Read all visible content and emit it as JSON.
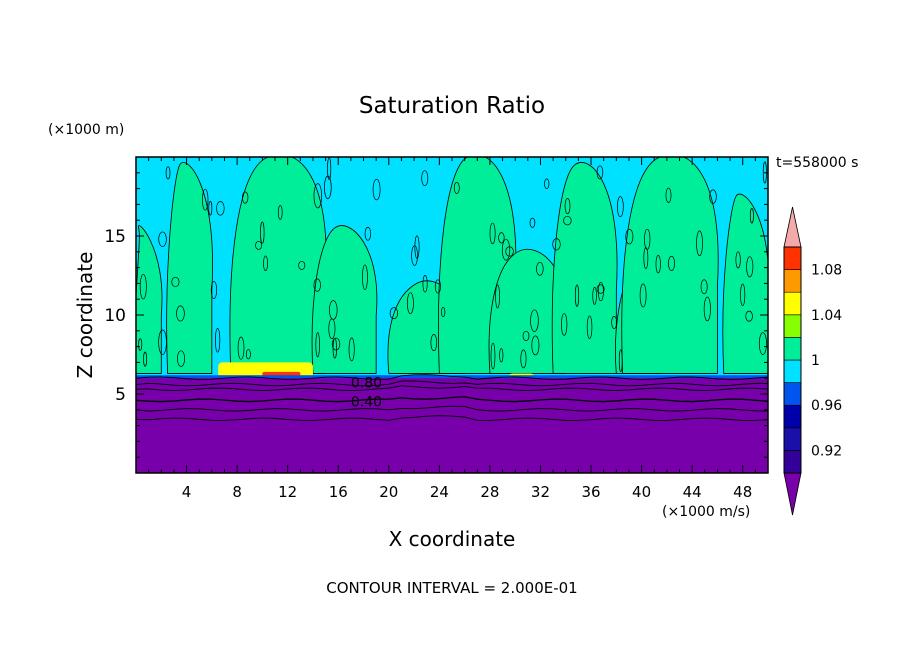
{
  "chart_data": {
    "type": "heatmap",
    "title": "Saturation Ratio",
    "xlabel": "X coordinate",
    "ylabel": "Z coordinate",
    "x_unit": "(×1000 m/s)",
    "y_unit": "(×1000 m)",
    "time_label": "t=558000 s",
    "contour_interval_label": "CONTOUR INTERVAL = 2.000E-01",
    "xlim": [
      0,
      50
    ],
    "ylim": [
      0,
      20
    ],
    "x_ticks": [
      4,
      8,
      12,
      16,
      20,
      24,
      28,
      32,
      36,
      40,
      44,
      48
    ],
    "y_ticks": [
      5,
      10,
      15
    ],
    "contour_labels": [
      {
        "text": "0.80",
        "x": 17.0,
        "y": 5.8
      },
      {
        "text": "0.40",
        "x": 17.0,
        "y": 4.6
      }
    ],
    "colorbar": {
      "levels": [
        0.9,
        0.92,
        0.94,
        0.96,
        0.98,
        1.0,
        1.02,
        1.04,
        1.06,
        1.08,
        1.1
      ],
      "colors": [
        "#330099",
        "#1a10a8",
        "#0000aa",
        "#0055ee",
        "#00e0ff",
        "#00ee99",
        "#88ff00",
        "#ffff00",
        "#ff9900",
        "#ff3300",
        "#ffaaaa"
      ],
      "under_color": "#7700aa",
      "over_color": "#f4aaaa",
      "tick_labels": [
        "0.92",
        "0.96",
        "1",
        "1.04",
        "1.08"
      ],
      "tick_values": [
        0.92,
        0.96,
        1.0,
        1.04,
        1.08
      ]
    },
    "regions": {
      "dry_layer_top": 6.0,
      "dry_value": 0.4,
      "background_value": 0.99,
      "supersaturated_value": 1.01,
      "supersaturated_blobs": [
        {
          "x0": 0.0,
          "x1": 2.0,
          "top": 15.5
        },
        {
          "x0": 2.5,
          "x1": 6.0,
          "top": 19.5
        },
        {
          "x0": 7.5,
          "x1": 15.0,
          "top": 20.0
        },
        {
          "x0": 14.0,
          "x1": 19.0,
          "top": 15.5
        },
        {
          "x0": 20.0,
          "x1": 26.0,
          "top": 12.0
        },
        {
          "x0": 24.0,
          "x1": 30.0,
          "top": 20.0
        },
        {
          "x0": 28.0,
          "x1": 34.0,
          "top": 14.0
        },
        {
          "x0": 33.0,
          "x1": 38.0,
          "top": 19.5
        },
        {
          "x0": 38.0,
          "x1": 41.5,
          "top": 12.5
        },
        {
          "x0": 38.5,
          "x1": 46.0,
          "top": 20.0
        },
        {
          "x0": 46.5,
          "x1": 50.0,
          "top": 17.5
        }
      ],
      "yellow_patches": [
        {
          "x0": 6.5,
          "x1": 14.0,
          "y0": 6.0,
          "y1": 7.0
        },
        {
          "x0": 29.5,
          "x1": 31.5,
          "y0": 6.0,
          "y1": 6.3
        }
      ],
      "red_patches": [
        {
          "x0": 10.0,
          "x1": 13.0,
          "y0": 6.0,
          "y1": 6.4
        }
      ]
    }
  }
}
